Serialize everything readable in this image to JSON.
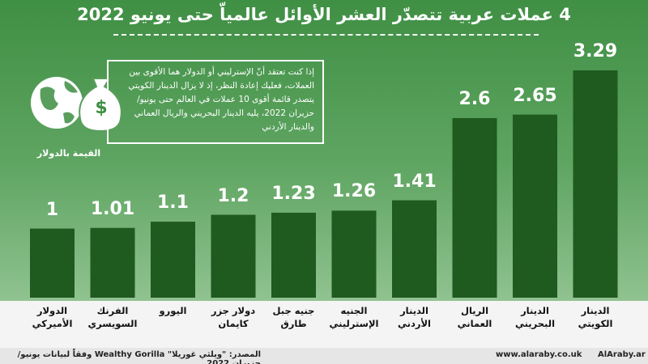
{
  "chart_data": {
    "type": "bar",
    "title": "4 عملات عربية تتصدّر العشر الأوائل عالمياّ حتى يونيو 2022",
    "annotation": "إذا كنت تعتقد أنّ الإسترليني أو الدولار هما الأقوى بين العملات، فعليك إعادة النظر، إذ لا يزال الدينار الكويتي يتصدر قائمة أقوى 10 عملات في العالم حتى يونيو/ حزيران 2022، يليه الدينار البحريني والريال العماني والدينار الأردني",
    "y_label": "القيمة بالدولار",
    "categories": [
      "الدولار الأميركي",
      "الفرنك السويسري",
      "اليورو",
      "دولار جزر كايمان",
      "جنيه جبل طارق",
      "الجنيه الإسترليني",
      "الدينار الأردني",
      "الريال العماني",
      "الدينار البحريني",
      "الدينار الكويتي"
    ],
    "values": [
      1,
      1.01,
      1.1,
      1.2,
      1.23,
      1.26,
      1.41,
      2.6,
      2.65,
      3.29
    ],
    "color": "#1f5a1f",
    "source": "المصدر: \"ويلثي غوريلا\" Wealthy Gorilla وفقاً لبيانات يونيو/ حزيران 2022",
    "website": "www.alaraby.co.uk",
    "social": "AlAraby.ar"
  }
}
